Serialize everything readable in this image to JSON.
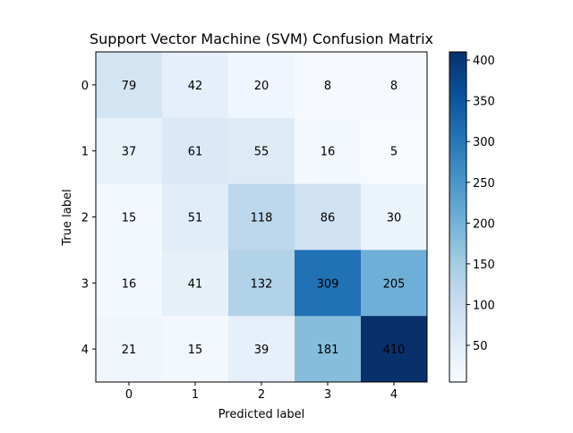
{
  "chart_data": {
    "type": "heatmap",
    "title": "Support Vector Machine (SVM) Confusion Matrix",
    "xlabel": "Predicted label",
    "ylabel": "True label",
    "x_categories": [
      "0",
      "1",
      "2",
      "3",
      "4"
    ],
    "y_categories": [
      "0",
      "1",
      "2",
      "3",
      "4"
    ],
    "values": [
      [
        79,
        42,
        20,
        8,
        8
      ],
      [
        37,
        61,
        55,
        16,
        5
      ],
      [
        15,
        51,
        118,
        86,
        30
      ],
      [
        16,
        41,
        132,
        309,
        205
      ],
      [
        21,
        15,
        39,
        181,
        410
      ]
    ],
    "colormap": "Blues",
    "color_range": [
      5,
      410
    ],
    "colorbar_ticks": [
      50,
      100,
      150,
      200,
      250,
      300,
      350,
      400
    ],
    "text_color_light": "#ffffff",
    "text_color_dark": "#08306b"
  }
}
